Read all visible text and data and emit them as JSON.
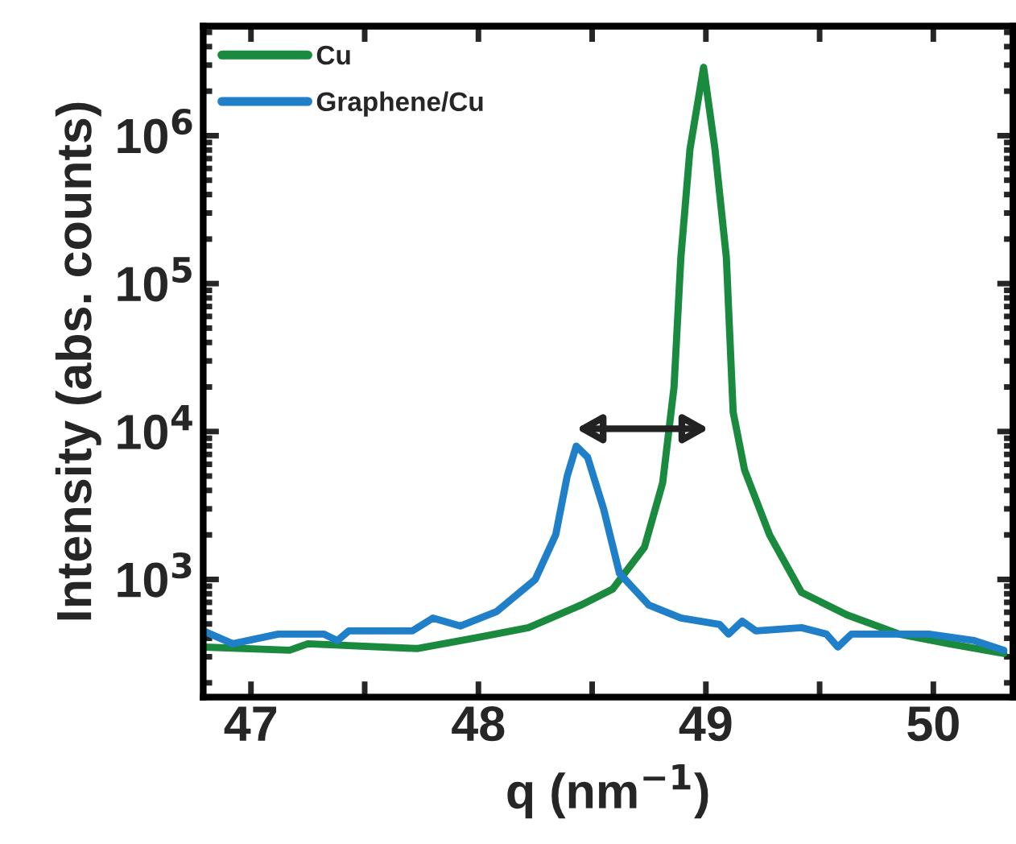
{
  "chart_data": {
    "type": "line",
    "xlabel": "q (nm$^{−1}$)",
    "ylabel": "Intensity (abs. counts)",
    "log": "y",
    "xlim": [
      46.79,
      50.35
    ],
    "ylim": [
      160,
      5500000
    ],
    "xticks": [
      47,
      {
        "value": 47.5,
        "label": null
      },
      48,
      {
        "value": 48.5,
        "label": null
      },
      49,
      {
        "value": 49.5,
        "label": null
      },
      50
    ],
    "yticks": [
      {
        "value": 1000,
        "label": "10$^{3}$"
      },
      {
        "value": 10000,
        "label": "10$^{4}$"
      },
      {
        "value": 100000,
        "label": "10$^{5}$"
      },
      {
        "value": 1000000,
        "label": "10$^{6}$"
      }
    ],
    "legend": "top left",
    "grid": false,
    "series": [
      {
        "name": "Cu",
        "color": "#1a8a3e",
        "x": [
          46.79,
          47.17,
          47.25,
          47.73,
          48.0,
          48.22,
          48.45,
          48.59,
          48.73,
          48.81,
          48.86,
          48.89,
          48.93,
          48.99,
          49.04,
          49.09,
          49.12,
          49.17,
          49.28,
          49.42,
          49.62,
          49.85,
          50.07,
          50.31
        ],
        "values": [
          349,
          332,
          367,
          341,
          406,
          472,
          670,
          860,
          1650,
          4500,
          20000,
          150000,
          810000,
          2900000,
          810000,
          150000,
          13500,
          5500,
          2000,
          818,
          576,
          427,
          367,
          316
        ]
      },
      {
        "name": "Graphene/Cu",
        "color": "#1f7fc8",
        "x": [
          46.79,
          46.92,
          47.12,
          47.32,
          47.38,
          47.43,
          47.71,
          47.8,
          47.92,
          48.08,
          48.25,
          48.34,
          48.39,
          48.43,
          48.48,
          48.55,
          48.62,
          48.75,
          48.89,
          49.06,
          49.1,
          49.16,
          49.22,
          49.42,
          49.53,
          49.58,
          49.64,
          49.98,
          50.18,
          50.31
        ],
        "values": [
          449,
          367,
          427,
          427,
          386,
          449,
          449,
          548,
          484,
          606,
          1000,
          2010,
          4970,
          7970,
          6700,
          3010,
          1100,
          670,
          548,
          496,
          427,
          522,
          449,
          472,
          427,
          349,
          427,
          427,
          386,
          332
        ]
      }
    ]
  }
}
